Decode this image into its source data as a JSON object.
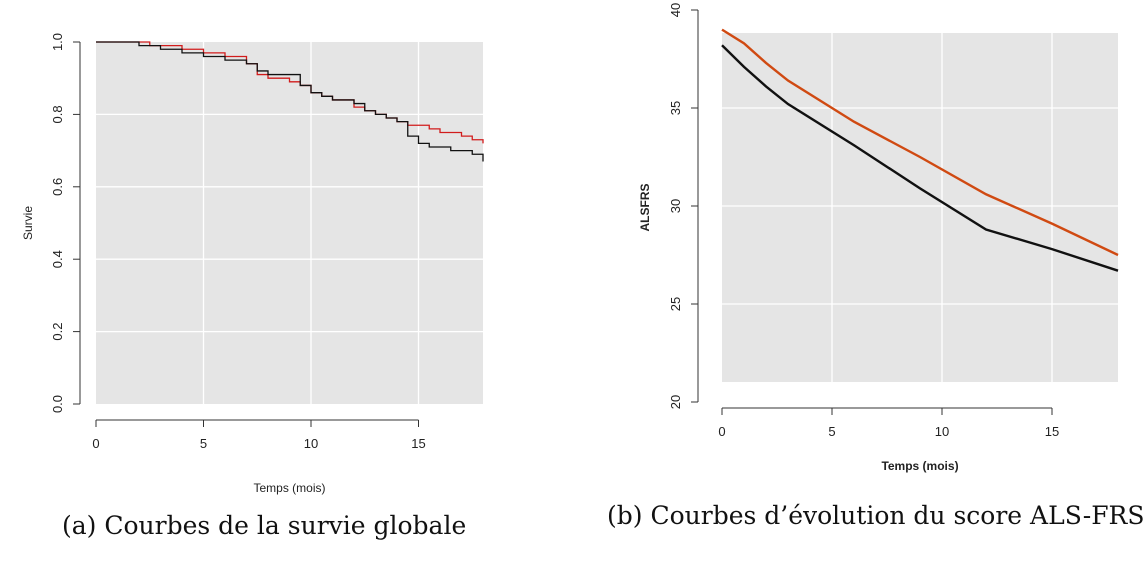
{
  "chart_data": [
    {
      "type": "line",
      "xlabel": "Temps (mois)",
      "ylabel": "Survie",
      "xlim": [
        0,
        18
      ],
      "ylim": [
        0,
        1
      ],
      "xticks": [
        0,
        5,
        10,
        15
      ],
      "yticks": [
        0.0,
        0.2,
        0.4,
        0.6,
        0.8,
        1.0
      ],
      "ytick_labels": [
        "0.0",
        "0.2",
        "0.4",
        "0.6",
        "0.8",
        "1.0"
      ],
      "xtick_labels": [
        "0",
        "5",
        "10",
        "15"
      ],
      "grid": true,
      "step": true,
      "caption": "(a) Courbes de la survie globale",
      "series": [
        {
          "color": "#d11c1c",
          "x": [
            0,
            2,
            2.5,
            3.5,
            4,
            5,
            6,
            7,
            7.5,
            8,
            8.5,
            9,
            9.5,
            10,
            10.5,
            11,
            11.5,
            12,
            12.5,
            13,
            13.5,
            14,
            14.5,
            15,
            15.5,
            16,
            16.5,
            17,
            17.5,
            18
          ],
          "y": [
            1.0,
            1.0,
            0.99,
            0.99,
            0.98,
            0.97,
            0.96,
            0.94,
            0.91,
            0.9,
            0.9,
            0.89,
            0.88,
            0.86,
            0.85,
            0.84,
            0.84,
            0.82,
            0.81,
            0.8,
            0.79,
            0.78,
            0.77,
            0.77,
            0.76,
            0.75,
            0.75,
            0.74,
            0.73,
            0.72
          ]
        },
        {
          "color": "#111111",
          "x": [
            0,
            1.5,
            2,
            3,
            4,
            5,
            6,
            6.5,
            7,
            7.5,
            8,
            8.5,
            9,
            9.5,
            10,
            10.5,
            11,
            11.5,
            12,
            12.5,
            13,
            13.5,
            14,
            14.5,
            15,
            15.5,
            16,
            16.5,
            17,
            17.5,
            18
          ],
          "y": [
            1.0,
            1.0,
            0.99,
            0.98,
            0.97,
            0.96,
            0.95,
            0.95,
            0.94,
            0.92,
            0.91,
            0.91,
            0.91,
            0.88,
            0.86,
            0.85,
            0.84,
            0.84,
            0.83,
            0.81,
            0.8,
            0.79,
            0.78,
            0.74,
            0.72,
            0.71,
            0.71,
            0.7,
            0.7,
            0.69,
            0.67
          ]
        }
      ]
    },
    {
      "type": "line",
      "xlabel": "Temps (mois)",
      "ylabel": "ALSFRS",
      "xlim": [
        0,
        18
      ],
      "ylim": [
        20,
        40
      ],
      "xticks": [
        0,
        5,
        10,
        15
      ],
      "yticks": [
        20,
        25,
        30,
        35,
        40
      ],
      "xtick_labels": [
        "0",
        "5",
        "10",
        "15"
      ],
      "ytick_labels": [
        "20",
        "25",
        "30",
        "35",
        "40"
      ],
      "grid": true,
      "step": false,
      "caption": "(b) Courbes d’évolution du score ALS-FRS",
      "series": [
        {
          "color": "#d04a12",
          "x": [
            0,
            1,
            2,
            3,
            6,
            9,
            12,
            15,
            18
          ],
          "y": [
            39.0,
            38.3,
            37.3,
            36.4,
            34.3,
            32.5,
            30.6,
            29.1,
            27.5
          ]
        },
        {
          "color": "#111111",
          "x": [
            0,
            1,
            2,
            3,
            6,
            9,
            12,
            15,
            18
          ],
          "y": [
            38.2,
            37.1,
            36.1,
            35.2,
            33.1,
            30.9,
            28.8,
            27.8,
            26.7
          ]
        }
      ]
    }
  ]
}
